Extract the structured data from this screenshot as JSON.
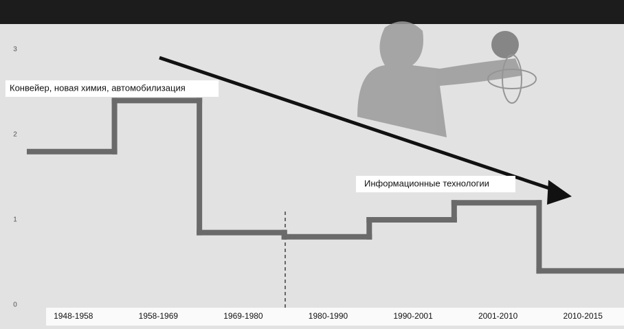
{
  "chart_data": {
    "type": "step",
    "categories": [
      "1948-1958",
      "1958-1969",
      "1969-1980",
      "1980-1990",
      "1990-2001",
      "2001-2010",
      "2010-2015"
    ],
    "values": [
      1.8,
      2.4,
      0.85,
      0.8,
      1.0,
      1.2,
      0.4
    ],
    "color": "#6a6a6a",
    "ylim": [
      0,
      3
    ],
    "yticks": [
      0,
      1,
      2,
      3
    ],
    "annotations": [
      "Конвейер, новая химия, автомобилизация",
      "Информационные технологии"
    ]
  }
}
